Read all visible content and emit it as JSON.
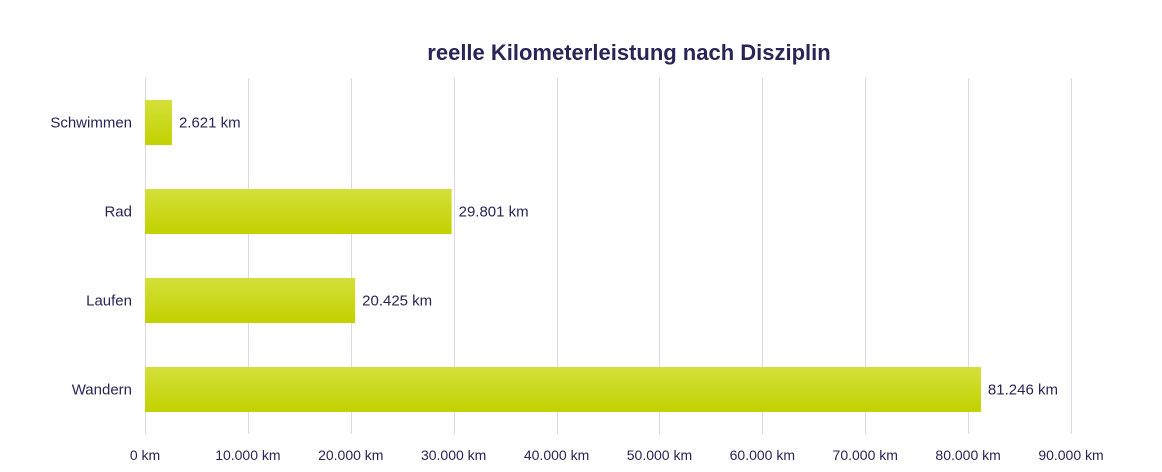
{
  "chart_data": {
    "type": "bar",
    "orientation": "horizontal",
    "title": "reelle Kilometerleistung nach Disziplin",
    "categories": [
      "Schwimmen",
      "Rad",
      "Laufen",
      "Wandern"
    ],
    "values": [
      2621,
      29801,
      20425,
      81246
    ],
    "value_labels": [
      "2.621 km",
      "29.801 km",
      "20.425 km",
      "81.246 km"
    ],
    "xlim": [
      0,
      90000
    ],
    "x_ticks": [
      0,
      10000,
      20000,
      30000,
      40000,
      50000,
      60000,
      70000,
      80000,
      90000
    ],
    "x_tick_labels": [
      "0 km",
      "10.000 km",
      "20.000 km",
      "30.000 km",
      "40.000 km",
      "50.000 km",
      "60.000 km",
      "70.000 km",
      "80.000 km",
      "90.000 km"
    ],
    "xlabel": "",
    "ylabel": "",
    "grid": true,
    "legend": "none",
    "colors": {
      "bar_top": "#d4e03a",
      "bar_bottom": "#c2d100",
      "text": "#2a2457",
      "grid": "#d9d9e8"
    }
  }
}
